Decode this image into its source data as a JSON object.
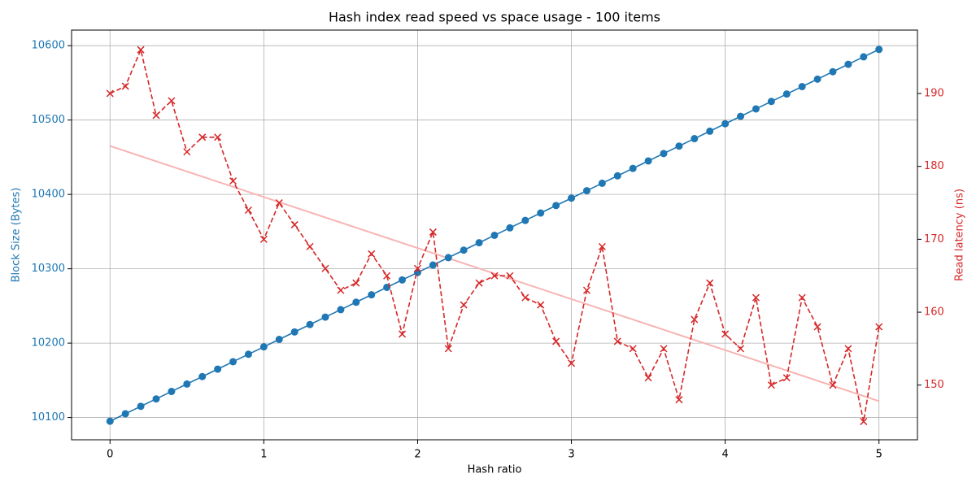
{
  "chart_data": {
    "type": "line",
    "title": "Hash index read speed vs space usage - 100 items",
    "xlabel": "Hash ratio",
    "ylabel": "Block Size (Bytes)",
    "y2label": "Read latency (ns)",
    "x": [
      0,
      0.1,
      0.2,
      0.3,
      0.4,
      0.5,
      0.6,
      0.7,
      0.8,
      0.9,
      1,
      1.1,
      1.2,
      1.3,
      1.4,
      1.5,
      1.6,
      1.7,
      1.8,
      1.9,
      2,
      2.1,
      2.2,
      2.3,
      2.4,
      2.5,
      2.6,
      2.7,
      2.8,
      2.9,
      3,
      3.1,
      3.2,
      3.3,
      3.4,
      3.5,
      3.6,
      3.7,
      3.8,
      3.9,
      4,
      4.1,
      4.2,
      4.3,
      4.4,
      4.5,
      4.6,
      4.7,
      4.8,
      4.9,
      5
    ],
    "series": [
      {
        "color": "#1f77b4",
        "marker": "circle",
        "dash": false,
        "values": [
          10095,
          10105,
          10115,
          10125,
          10135,
          10145,
          10155,
          10165,
          10175,
          10185,
          10195,
          10205,
          10215,
          10225,
          10235,
          10245,
          10255,
          10265,
          10275,
          10285,
          10295,
          10305,
          10315,
          10325,
          10335,
          10345,
          10355,
          10365,
          10375,
          10385,
          10395,
          10405,
          10415,
          10425,
          10435,
          10445,
          10455,
          10465,
          10475,
          10485,
          10495,
          10505,
          10515,
          10525,
          10535,
          10545,
          10555,
          10565,
          10575,
          10585,
          10595
        ]
      },
      {
        "color": "#d62728",
        "marker": "x",
        "dash": true,
        "axis": "y2",
        "values": [
          190,
          191,
          196,
          187,
          189,
          182,
          184,
          184,
          178,
          174,
          170,
          175,
          172,
          169,
          166,
          163,
          164,
          168,
          165,
          157,
          166,
          171,
          155,
          161,
          164,
          165,
          165,
          162,
          161,
          156,
          153,
          163,
          169,
          156,
          155,
          151,
          155,
          148,
          159,
          164,
          157,
          155,
          162,
          150,
          151,
          162,
          158,
          150,
          155,
          145,
          158
        ]
      }
    ],
    "trend": {
      "color": "#f8b4b4",
      "axis": "y2",
      "x": [
        0,
        5
      ],
      "values": [
        182.8,
        147.8
      ]
    },
    "xlim": [
      -0.25,
      5.25
    ],
    "xticks": [
      0,
      1,
      2,
      3,
      4,
      5
    ],
    "ylim": [
      10070,
      10621
    ],
    "yticks": [
      10100,
      10200,
      10300,
      10400,
      10500,
      10600
    ],
    "y2lim": [
      142.5,
      198.7
    ],
    "y2ticks": [
      150,
      160,
      170,
      180,
      190
    ],
    "grid": true
  }
}
